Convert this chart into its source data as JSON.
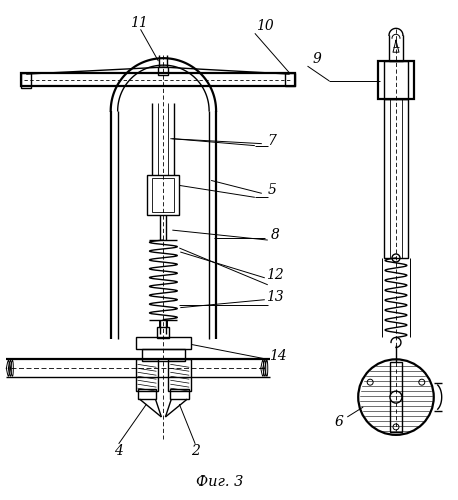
{
  "title": "Фиг. 3",
  "bg_color": "#ffffff",
  "line_color": "#000000",
  "figsize": [
    4.58,
    5.0
  ],
  "dpi": 100
}
